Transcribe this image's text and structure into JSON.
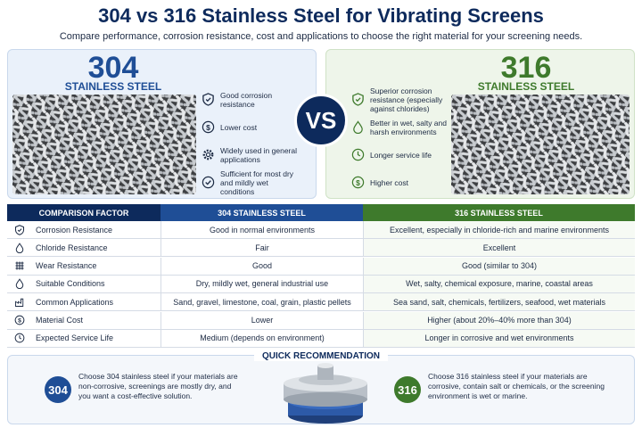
{
  "header": {
    "title": "304 vs 316 Stainless Steel for Vibrating Screens",
    "subtitle": "Compare performance, corrosion resistance, cost and applications to choose the right material for your screening needs."
  },
  "panels": [
    {
      "grade": "304",
      "label": "STAINLESS STEEL",
      "features": [
        "Good corrosion resistance",
        "Lower cost",
        "Widely used in general applications",
        "Sufficient for most dry and mildly wet conditions"
      ]
    },
    {
      "grade": "316",
      "label": "STAINLESS STEEL",
      "features": [
        "Superior corrosion resistance (especially against chlorides)",
        "Better in wet, salty and harsh environments",
        "Longer service life",
        "Higher cost"
      ]
    }
  ],
  "vs": "VS",
  "table": {
    "headers": [
      "COMPARISON FACTOR",
      "304 STAINLESS STEEL",
      "316 STAINLESS STEEL"
    ],
    "rows": [
      [
        "Corrosion Resistance",
        "Good in normal environments",
        "Excellent, especially in chloride-rich and marine environments"
      ],
      [
        "Chloride Resistance",
        "Fair",
        "Excellent"
      ],
      [
        "Wear Resistance",
        "Good",
        "Good (similar to 304)"
      ],
      [
        "Suitable Conditions",
        "Dry, mildly wet, general industrial use",
        "Wet, salty, chemical exposure, marine, coastal areas"
      ],
      [
        "Common Applications",
        "Sand, gravel, limestone, coal, grain, plastic pellets",
        "Sea sand, salt, chemicals, fertilizers, seafood, wet materials"
      ],
      [
        "Material Cost",
        "Lower",
        "Higher (about 20%–40% more than 304)"
      ],
      [
        "Expected Service Life",
        "Medium (depends on environment)",
        "Longer in corrosive and wet environments"
      ]
    ]
  },
  "recommendation": {
    "title": "QUICK RECOMMENDATION",
    "items": [
      {
        "badge": "304",
        "text": "Choose 304 stainless steel if your materials are non-corrosive, screenings are mostly dry, and you want a cost-effective solution."
      },
      {
        "badge": "316",
        "text": "Choose 316 stainless steel if your materials are corrosive, contain salt or chemicals, or the screening environment is wet or marine."
      }
    ]
  }
}
